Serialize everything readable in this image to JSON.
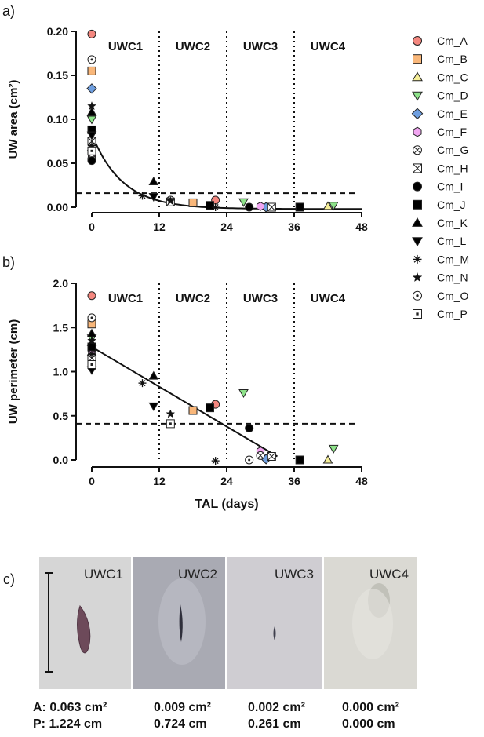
{
  "panel_labels": [
    "a)",
    "b)",
    "c)"
  ],
  "chart_data": [
    {
      "type": "scatter",
      "ylabel": "UW area (cm²)",
      "xlabel": "",
      "xticks": [
        0,
        12,
        24,
        36,
        48
      ],
      "yticks": [
        "0.00",
        "0.05",
        "0.10",
        "0.15",
        "0.20"
      ],
      "xlim": [
        -2,
        48
      ],
      "ylim": [
        -0.01,
        0.2
      ],
      "threshold": 0.016,
      "region_lines": [
        12,
        24,
        36
      ],
      "regions": [
        "UWC1",
        "UWC2",
        "UWC3",
        "UWC4"
      ],
      "fit": {
        "kind": "exp_decay",
        "y0": 0.083,
        "k": 0.185,
        "plateau": -0.002
      },
      "points": [
        {
          "s": "Cm_A",
          "x": 0,
          "y": 0.197
        },
        {
          "s": "Cm_A",
          "x": 22,
          "y": 0.008
        },
        {
          "s": "Cm_B",
          "x": 0,
          "y": 0.155
        },
        {
          "s": "Cm_B",
          "x": 18,
          "y": 0.005
        },
        {
          "s": "Cm_C",
          "x": 0,
          "y": 0.068
        },
        {
          "s": "Cm_C",
          "x": 42,
          "y": 0.001
        },
        {
          "s": "Cm_D",
          "x": 0,
          "y": 0.1
        },
        {
          "s": "Cm_D",
          "x": 27,
          "y": 0.006
        },
        {
          "s": "Cm_D",
          "x": 43,
          "y": 0.002
        },
        {
          "s": "Cm_E",
          "x": 0,
          "y": 0.135
        },
        {
          "s": "Cm_E",
          "x": 31,
          "y": 0.0
        },
        {
          "s": "Cm_F",
          "x": 0,
          "y": 0.06
        },
        {
          "s": "Cm_F",
          "x": 30,
          "y": 0.001
        },
        {
          "s": "Cm_G",
          "x": 0,
          "y": 0.055
        },
        {
          "s": "Cm_G",
          "x": 14,
          "y": 0.008
        },
        {
          "s": "Cm_H",
          "x": 0,
          "y": 0.075
        },
        {
          "s": "Cm_H",
          "x": 14,
          "y": 0.006
        },
        {
          "s": "Cm_H",
          "x": 32,
          "y": 0.0
        },
        {
          "s": "Cm_I",
          "x": 0,
          "y": 0.053
        },
        {
          "s": "Cm_I",
          "x": 28,
          "y": 0.0
        },
        {
          "s": "Cm_J",
          "x": 0,
          "y": 0.088
        },
        {
          "s": "Cm_J",
          "x": 21,
          "y": 0.002
        },
        {
          "s": "Cm_J",
          "x": 37,
          "y": 0.0
        },
        {
          "s": "Cm_K",
          "x": 0,
          "y": 0.108
        },
        {
          "s": "Cm_K",
          "x": 11,
          "y": 0.029
        },
        {
          "s": "Cm_L",
          "x": 0,
          "y": 0.082
        },
        {
          "s": "Cm_L",
          "x": 11,
          "y": 0.012
        },
        {
          "s": "Cm_M",
          "x": 0,
          "y": 0.07
        },
        {
          "s": "Cm_M",
          "x": 9,
          "y": 0.013
        },
        {
          "s": "Cm_M",
          "x": 22,
          "y": 0.0
        },
        {
          "s": "Cm_N",
          "x": 0,
          "y": 0.115
        },
        {
          "s": "Cm_N",
          "x": 14,
          "y": 0.007
        },
        {
          "s": "Cm_O",
          "x": 0,
          "y": 0.168
        },
        {
          "s": "Cm_P",
          "x": 0,
          "y": 0.064
        }
      ]
    },
    {
      "type": "scatter",
      "ylabel": "UW perimeter (cm)",
      "xlabel": "TAL (days)",
      "xticks": [
        0,
        12,
        24,
        36,
        48
      ],
      "yticks": [
        "0.0",
        "0.5",
        "1.0",
        "1.5",
        "2.0"
      ],
      "xlim": [
        -2,
        48
      ],
      "ylim": [
        -0.1,
        2.0
      ],
      "threshold": 0.41,
      "region_lines": [
        12,
        24,
        36
      ],
      "regions": [
        "UWC1",
        "UWC2",
        "UWC3",
        "UWC4"
      ],
      "fit": {
        "kind": "linear",
        "x0": 0,
        "x1": 33,
        "y_at_x0": 1.28,
        "y_at_x1": 0.04
      },
      "points": [
        {
          "s": "Cm_A",
          "x": 0,
          "y": 1.86
        },
        {
          "s": "Cm_A",
          "x": 22,
          "y": 0.63
        },
        {
          "s": "Cm_B",
          "x": 0,
          "y": 1.54
        },
        {
          "s": "Cm_B",
          "x": 18,
          "y": 0.56
        },
        {
          "s": "Cm_C",
          "x": 0,
          "y": 1.22
        },
        {
          "s": "Cm_C",
          "x": 42,
          "y": 0.0
        },
        {
          "s": "Cm_D",
          "x": 0,
          "y": 1.38
        },
        {
          "s": "Cm_D",
          "x": 27,
          "y": 0.76
        },
        {
          "s": "Cm_D",
          "x": 43,
          "y": 0.13
        },
        {
          "s": "Cm_E",
          "x": 0,
          "y": 1.3
        },
        {
          "s": "Cm_E",
          "x": 31,
          "y": 0.01
        },
        {
          "s": "Cm_F",
          "x": 0,
          "y": 1.24
        },
        {
          "s": "Cm_F",
          "x": 30,
          "y": 0.1
        },
        {
          "s": "Cm_G",
          "x": 0,
          "y": 1.1
        },
        {
          "s": "Cm_G",
          "x": 30,
          "y": 0.05
        },
        {
          "s": "Cm_H",
          "x": 0,
          "y": 1.15
        },
        {
          "s": "Cm_H",
          "x": 32,
          "y": 0.04
        },
        {
          "s": "Cm_I",
          "x": 0,
          "y": 1.05
        },
        {
          "s": "Cm_I",
          "x": 28,
          "y": 0.36
        },
        {
          "s": "Cm_J",
          "x": 0,
          "y": 1.28
        },
        {
          "s": "Cm_J",
          "x": 21,
          "y": 0.59
        },
        {
          "s": "Cm_J",
          "x": 37,
          "y": 0.0
        },
        {
          "s": "Cm_K",
          "x": 0,
          "y": 1.43
        },
        {
          "s": "Cm_K",
          "x": 11,
          "y": 0.95
        },
        {
          "s": "Cm_L",
          "x": 0,
          "y": 1.02
        },
        {
          "s": "Cm_L",
          "x": 11,
          "y": 0.61
        },
        {
          "s": "Cm_M",
          "x": 0,
          "y": 1.2
        },
        {
          "s": "Cm_M",
          "x": 9,
          "y": 0.87
        },
        {
          "s": "Cm_M",
          "x": 22,
          "y": -0.01
        },
        {
          "s": "Cm_N",
          "x": 0,
          "y": 1.35
        },
        {
          "s": "Cm_N",
          "x": 14,
          "y": 0.52
        },
        {
          "s": "Cm_O",
          "x": 0,
          "y": 1.61
        },
        {
          "s": "Cm_O",
          "x": 28,
          "y": 0.0
        },
        {
          "s": "Cm_P",
          "x": 0,
          "y": 1.08
        },
        {
          "s": "Cm_P",
          "x": 14,
          "y": 0.41
        }
      ]
    }
  ],
  "legend": [
    {
      "name": "Cm_A",
      "marker": "circle",
      "fill": "#f4877f"
    },
    {
      "name": "Cm_B",
      "marker": "square",
      "fill": "#f9b77a"
    },
    {
      "name": "Cm_C",
      "marker": "triangle-up",
      "fill": "#f6ef98"
    },
    {
      "name": "Cm_D",
      "marker": "triangle-down",
      "fill": "#8ee38a"
    },
    {
      "name": "Cm_E",
      "marker": "diamond",
      "fill": "#6f9fe0"
    },
    {
      "name": "Cm_F",
      "marker": "hexagon",
      "fill": "#f2a6f2"
    },
    {
      "name": "Cm_G",
      "marker": "circle-x",
      "fill": "#ffffff"
    },
    {
      "name": "Cm_H",
      "marker": "square-x",
      "fill": "#ffffff"
    },
    {
      "name": "Cm_I",
      "marker": "circle",
      "fill": "#000000"
    },
    {
      "name": "Cm_J",
      "marker": "square",
      "fill": "#000000"
    },
    {
      "name": "Cm_K",
      "marker": "triangle-up",
      "fill": "#000000"
    },
    {
      "name": "Cm_L",
      "marker": "triangle-down",
      "fill": "#000000"
    },
    {
      "name": "Cm_M",
      "marker": "asterisk",
      "fill": "#000000"
    },
    {
      "name": "Cm_N",
      "marker": "star",
      "fill": "#000000"
    },
    {
      "name": "Cm_O",
      "marker": "circle-dot",
      "fill": "#ffffff"
    },
    {
      "name": "Cm_P",
      "marker": "square-dot",
      "fill": "#ffffff"
    }
  ],
  "photos": [
    {
      "label": "UWC1",
      "background": "#d6d6d6",
      "area": "A: 0.063 cm²",
      "perimeter": "P: 1.224 cm"
    },
    {
      "label": "UWC2",
      "background": "#a9aab3",
      "area": "0.009 cm²",
      "perimeter": "0.724 cm"
    },
    {
      "label": "UWC3",
      "background": "#cfcdd2",
      "area": "0.002 cm²",
      "perimeter": "0.261 cm"
    },
    {
      "label": "UWC4",
      "background": "#dad9d3",
      "area": "0.000 cm²",
      "perimeter": "0.000 cm"
    }
  ]
}
